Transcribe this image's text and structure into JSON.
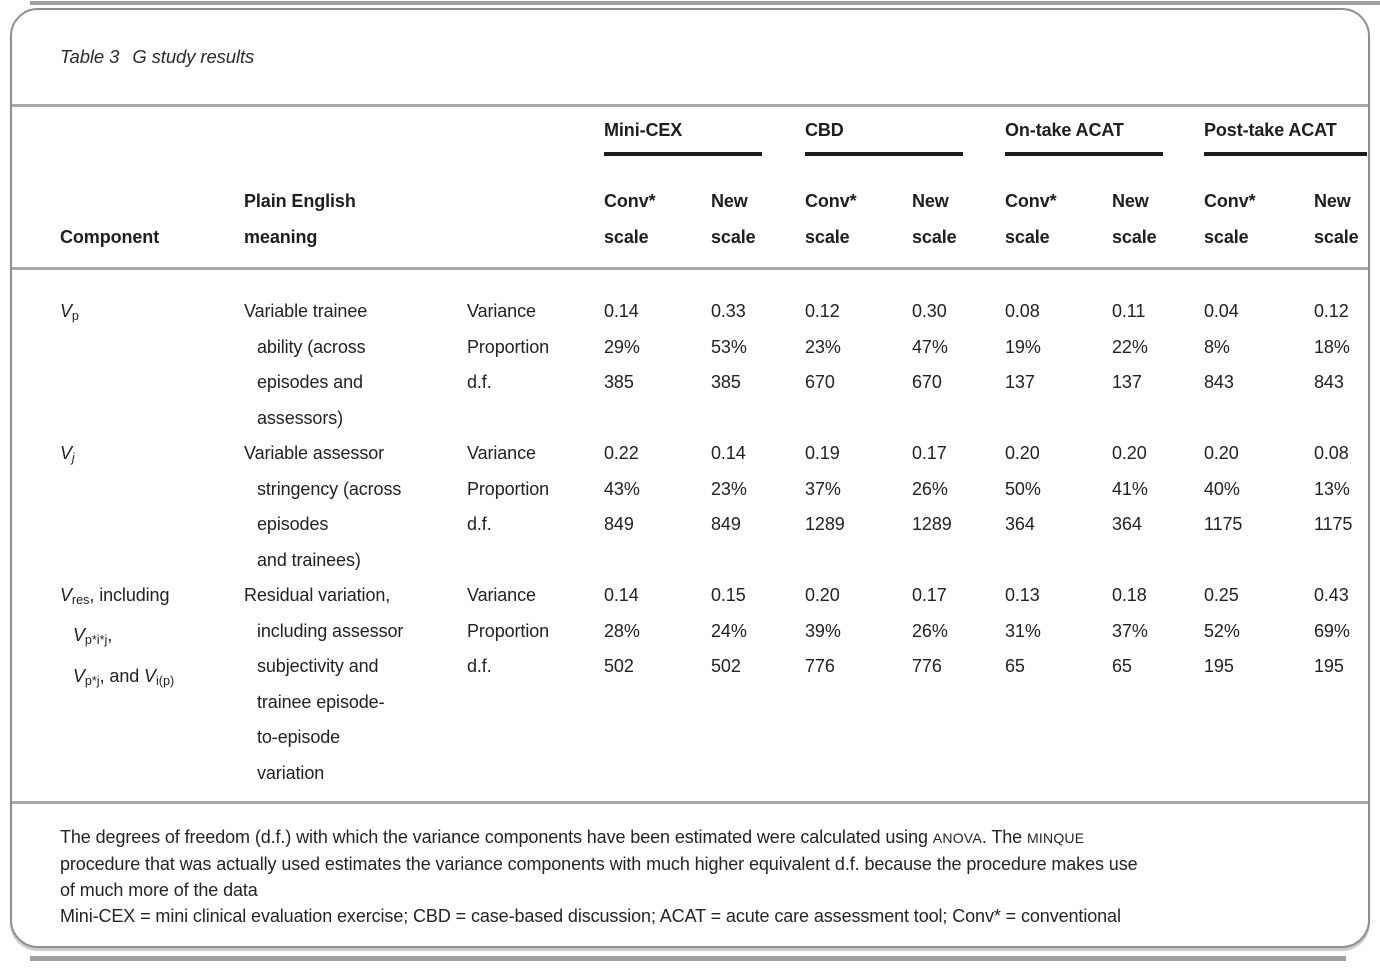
{
  "title": {
    "prefix": "Table 3",
    "text": "G study results"
  },
  "header": {
    "component": "Component",
    "meaning": [
      "Plain English",
      "meaning"
    ],
    "groups": [
      {
        "label": "Mini-CEX"
      },
      {
        "label": "CBD"
      },
      {
        "label": "On-take ACAT"
      },
      {
        "label": "Post-take ACAT"
      }
    ],
    "sub": {
      "conv": [
        "Conv*",
        "scale"
      ],
      "new": [
        "New",
        "scale"
      ]
    }
  },
  "rows": [
    {
      "component": [
        {
          "ind": false,
          "segs": [
            {
              "t": "V",
              "s": "v"
            },
            {
              "t": "p",
              "s": "sub"
            }
          ]
        }
      ],
      "meaning": [
        "Variable trainee",
        "ability (across",
        "episodes and",
        "assessors)"
      ],
      "stats": [
        "Variance",
        "Proportion",
        "d.f."
      ],
      "cells": [
        [
          "0.14",
          "29%",
          "385"
        ],
        [
          "0.33",
          "53%",
          "385"
        ],
        [
          "0.12",
          "23%",
          "670"
        ],
        [
          "0.30",
          "47%",
          "670"
        ],
        [
          "0.08",
          "19%",
          "137"
        ],
        [
          "0.11",
          "22%",
          "137"
        ],
        [
          "0.04",
          "8%",
          "843"
        ],
        [
          "0.12",
          "18%",
          "843"
        ]
      ]
    },
    {
      "component": [
        {
          "ind": false,
          "segs": [
            {
              "t": "V",
              "s": "v"
            },
            {
              "t": "j",
              "s": "subi"
            }
          ]
        }
      ],
      "meaning": [
        "Variable assessor",
        "stringency (across",
        "episodes",
        "and trainees)"
      ],
      "stats": [
        "Variance",
        "Proportion",
        "d.f."
      ],
      "cells": [
        [
          "0.22",
          "43%",
          "849"
        ],
        [
          "0.14",
          "23%",
          "849"
        ],
        [
          "0.19",
          "37%",
          "1289"
        ],
        [
          "0.17",
          "26%",
          "1289"
        ],
        [
          "0.20",
          "50%",
          "364"
        ],
        [
          "0.20",
          "41%",
          "364"
        ],
        [
          "0.20",
          "40%",
          "1175"
        ],
        [
          "0.08",
          "13%",
          "1175"
        ]
      ]
    },
    {
      "component": [
        {
          "ind": false,
          "segs": [
            {
              "t": "V",
              "s": "v"
            },
            {
              "t": "res",
              "s": "sub"
            },
            {
              "t": ", including",
              "s": "n"
            }
          ]
        },
        {
          "ind": true,
          "segs": [
            {
              "t": "V",
              "s": "v"
            },
            {
              "t": "p*i*j",
              "s": "sub"
            },
            {
              "t": ",",
              "s": "n"
            }
          ]
        },
        {
          "ind": true,
          "segs": [
            {
              "t": "V",
              "s": "v"
            },
            {
              "t": "p*j",
              "s": "sub"
            },
            {
              "t": ", and ",
              "s": "n"
            },
            {
              "t": "V",
              "s": "v"
            },
            {
              "t": "i(p)",
              "s": "sub"
            }
          ]
        }
      ],
      "meaning": [
        "Residual variation,",
        "including assessor",
        "subjectivity and",
        "trainee episode-",
        "to-episode",
        "variation"
      ],
      "stats": [
        "Variance",
        "Proportion",
        "d.f."
      ],
      "cells": [
        [
          "0.14",
          "28%",
          "502"
        ],
        [
          "0.15",
          "24%",
          "502"
        ],
        [
          "0.20",
          "39%",
          "776"
        ],
        [
          "0.17",
          "26%",
          "776"
        ],
        [
          "0.13",
          "31%",
          "65"
        ],
        [
          "0.18",
          "37%",
          "65"
        ],
        [
          "0.25",
          "52%",
          "195"
        ],
        [
          "0.43",
          "69%",
          "195"
        ]
      ]
    }
  ],
  "footnotes": {
    "lines": [
      [
        {
          "t": "The degrees of freedom (d.f.) with which the variance components have been estimated were calculated using ",
          "s": "n"
        },
        {
          "t": "ANOVA",
          "s": "sc"
        },
        {
          "t": ". The ",
          "s": "n"
        },
        {
          "t": "MINQUE",
          "s": "sc"
        }
      ],
      [
        {
          "t": "procedure that was actually used estimates the variance components with much higher equivalent d.f. because the procedure makes use",
          "s": "n"
        }
      ],
      [
        {
          "t": "of much more of the data",
          "s": "n"
        }
      ],
      [
        {
          "t": "Mini-CEX = mini clinical evaluation exercise; CBD = case-based discussion; ACAT = acute care assessment tool; Conv* = conventional",
          "s": "n"
        }
      ]
    ]
  },
  "colors": {
    "border": "#8f8f8f",
    "rule": "#a9a9a9",
    "group_underline": "#1c1c1c",
    "text": "#222222"
  }
}
